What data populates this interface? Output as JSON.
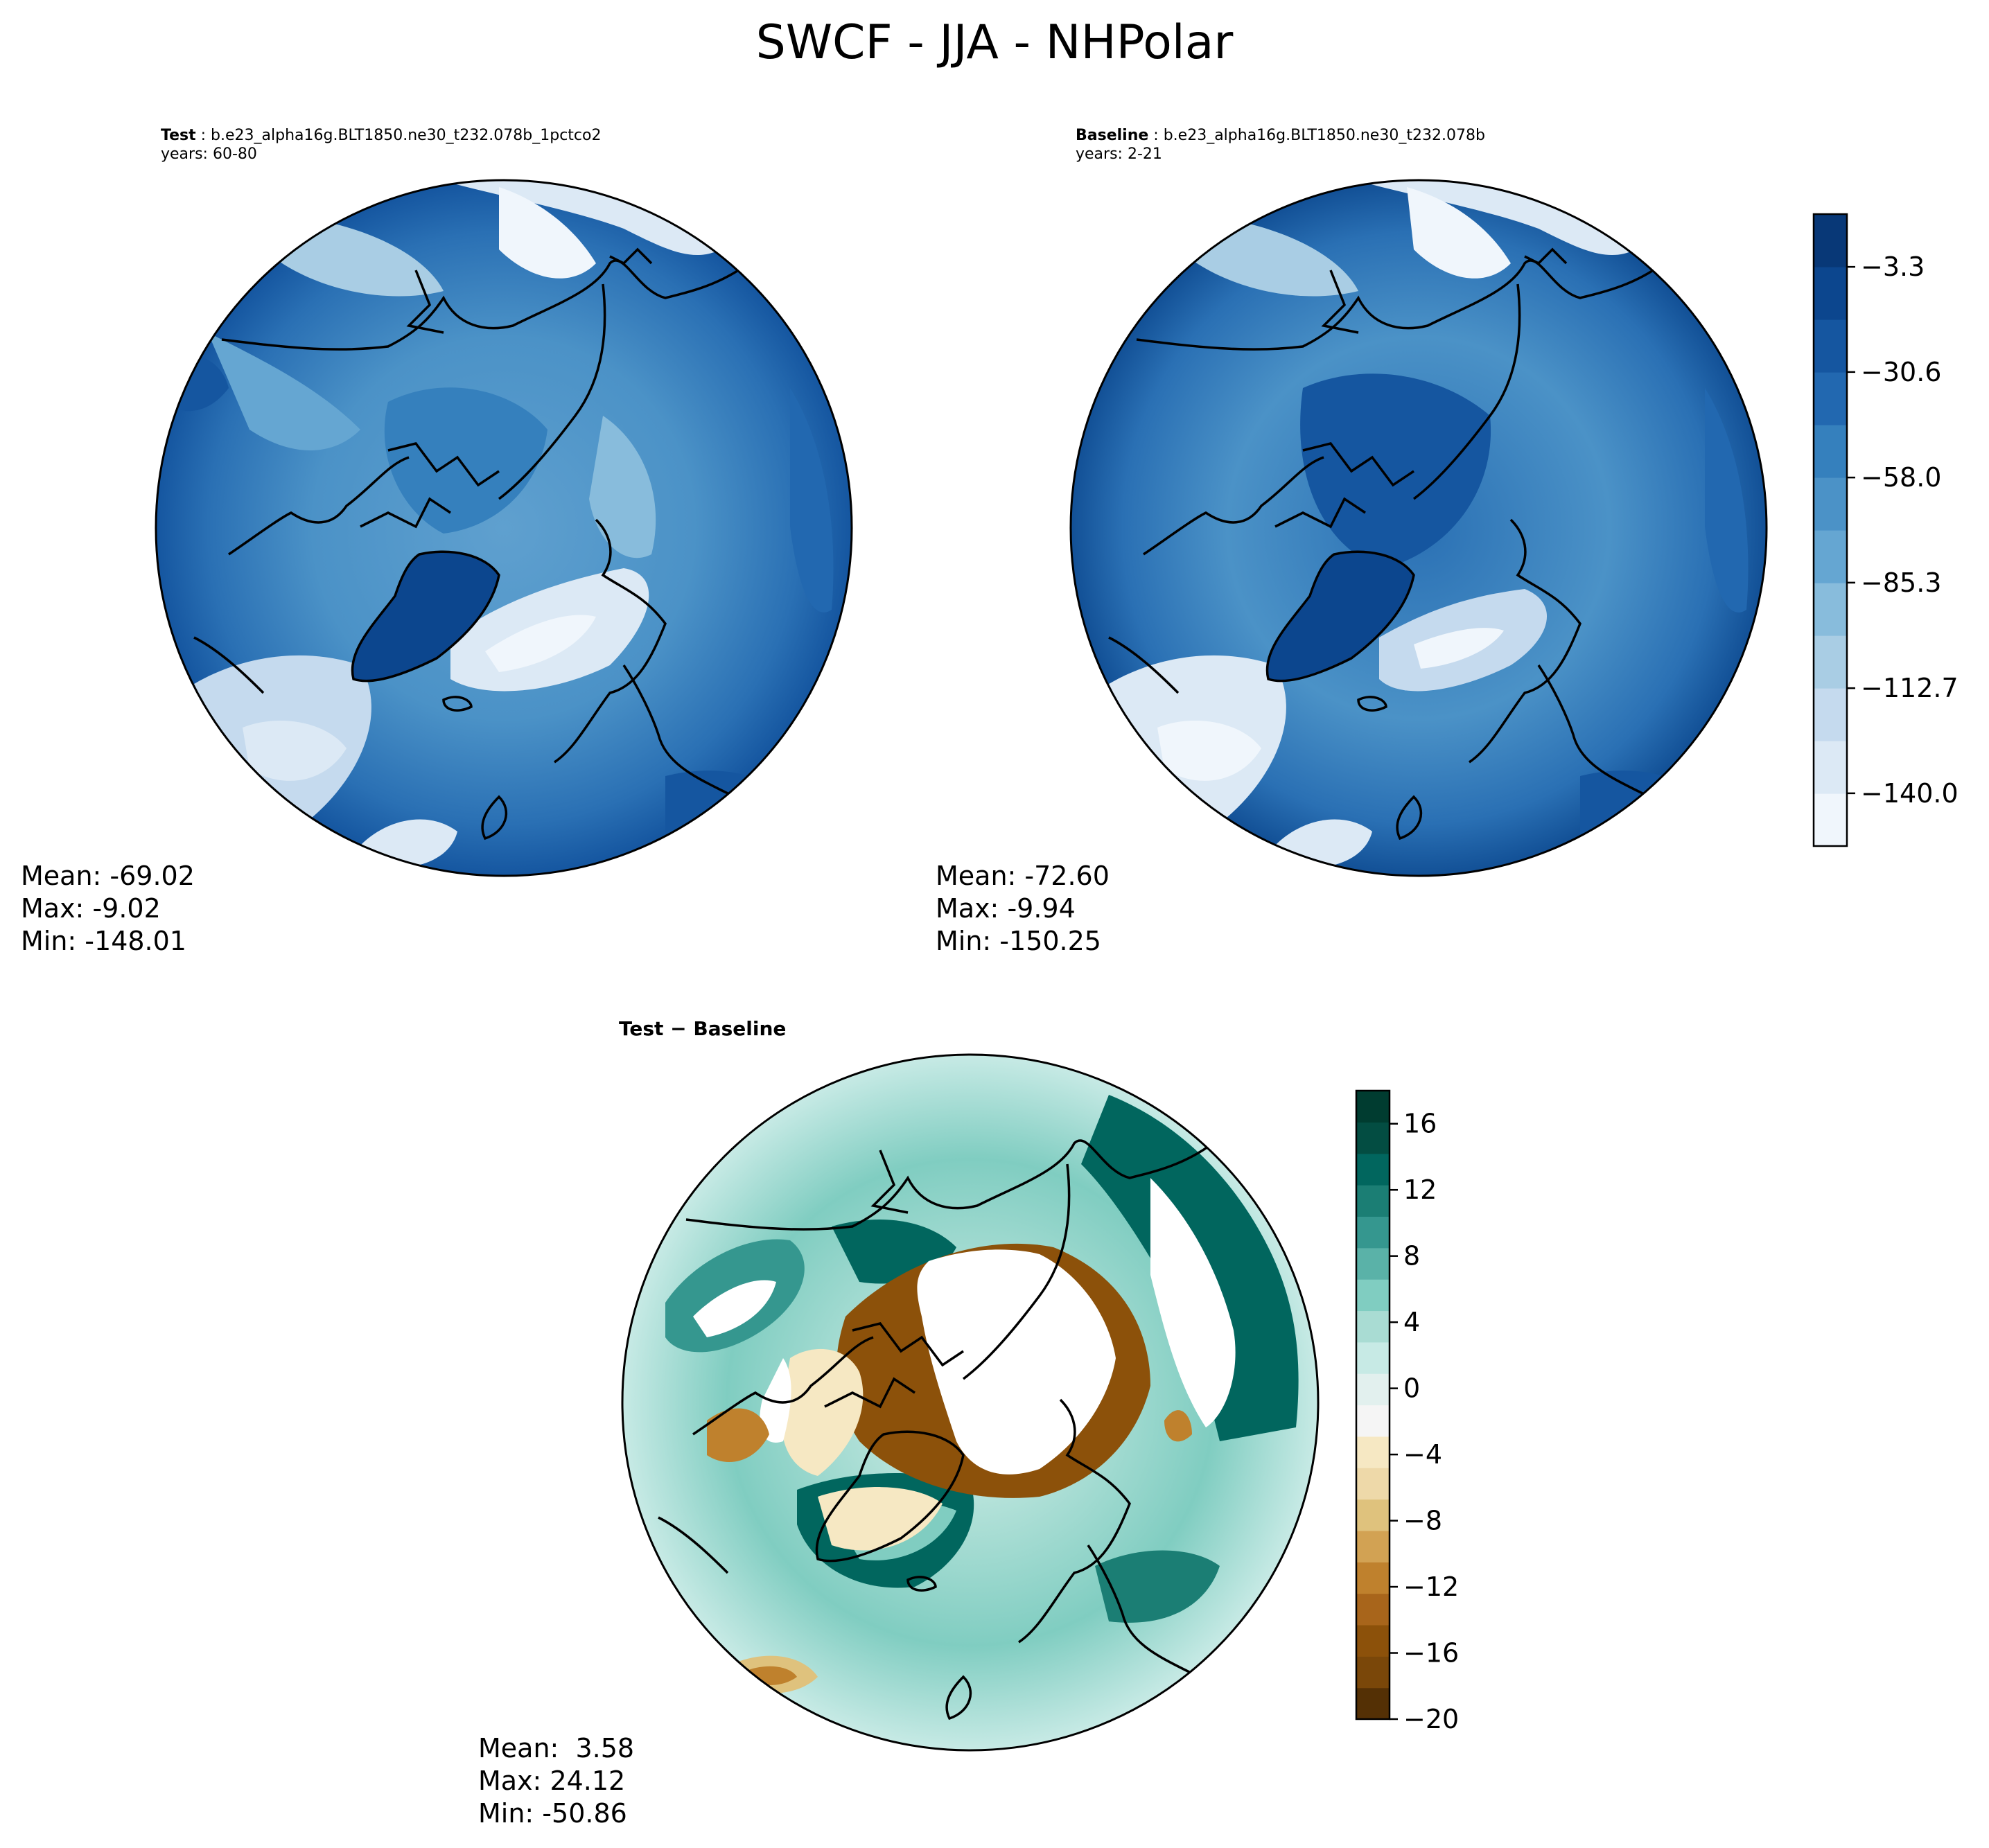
{
  "title": "SWCF - JJA - NHPolar",
  "panels": [
    {
      "id": "test",
      "role_label": "Test",
      "case": "b.e23_alpha16g.BLT1850.ne30_t232.078b_1pctco2",
      "years": "years: 60-80",
      "stats": {
        "mean": "Mean: -69.02",
        "max": "Max: -9.02",
        "min": "Min: -148.01"
      }
    },
    {
      "id": "baseline",
      "role_label": "Baseline",
      "case": "b.e23_alpha16g.BLT1850.ne30_t232.078b",
      "years": "years: 2-21",
      "stats": {
        "mean": "Mean: -72.60",
        "max": "Max: -9.94",
        "min": "Min: -150.25"
      }
    },
    {
      "id": "diff",
      "label": "Test − Baseline",
      "stats": {
        "mean": "Mean:  3.58",
        "max": "Max: 24.12",
        "min": "Min: -50.86"
      }
    }
  ],
  "colorbars": {
    "main": {
      "ticks": [
        "−3.3",
        "−30.6",
        "−58.0",
        "−85.3",
        "−112.7",
        "−140.0"
      ],
      "tick_values": [
        -3.3,
        -30.6,
        -58.0,
        -85.3,
        -112.7,
        -140.0
      ],
      "range": [
        -153.7,
        10.4
      ],
      "levels": 12,
      "colors": [
        "#f0f6fc",
        "#dce9f5",
        "#c5daee",
        "#a9cde4",
        "#88bcdc",
        "#65a6d2",
        "#4b92c7",
        "#3580bd",
        "#2268b0",
        "#1556a0",
        "#0c468e",
        "#083877"
      ]
    },
    "diff": {
      "ticks": [
        "16",
        "12",
        "8",
        "4",
        "0",
        "−4",
        "−8",
        "−12",
        "−16",
        "−20"
      ],
      "tick_values": [
        16,
        12,
        8,
        4,
        0,
        -4,
        -8,
        -12,
        -16,
        -20
      ],
      "range": [
        -20,
        18
      ],
      "colors": [
        "#543005",
        "#7a4709",
        "#8c510a",
        "#a8651b",
        "#bf812d",
        "#d2a253",
        "#dfc27d",
        "#eed9a9",
        "#f6e8c3",
        "#f5f5f5",
        "#e2f0ee",
        "#c7eae5",
        "#a9dcd3",
        "#80cdc1",
        "#5ab2a8",
        "#35978f",
        "#1b7e74",
        "#01665e",
        "#034d42",
        "#003c30"
      ]
    }
  }
}
